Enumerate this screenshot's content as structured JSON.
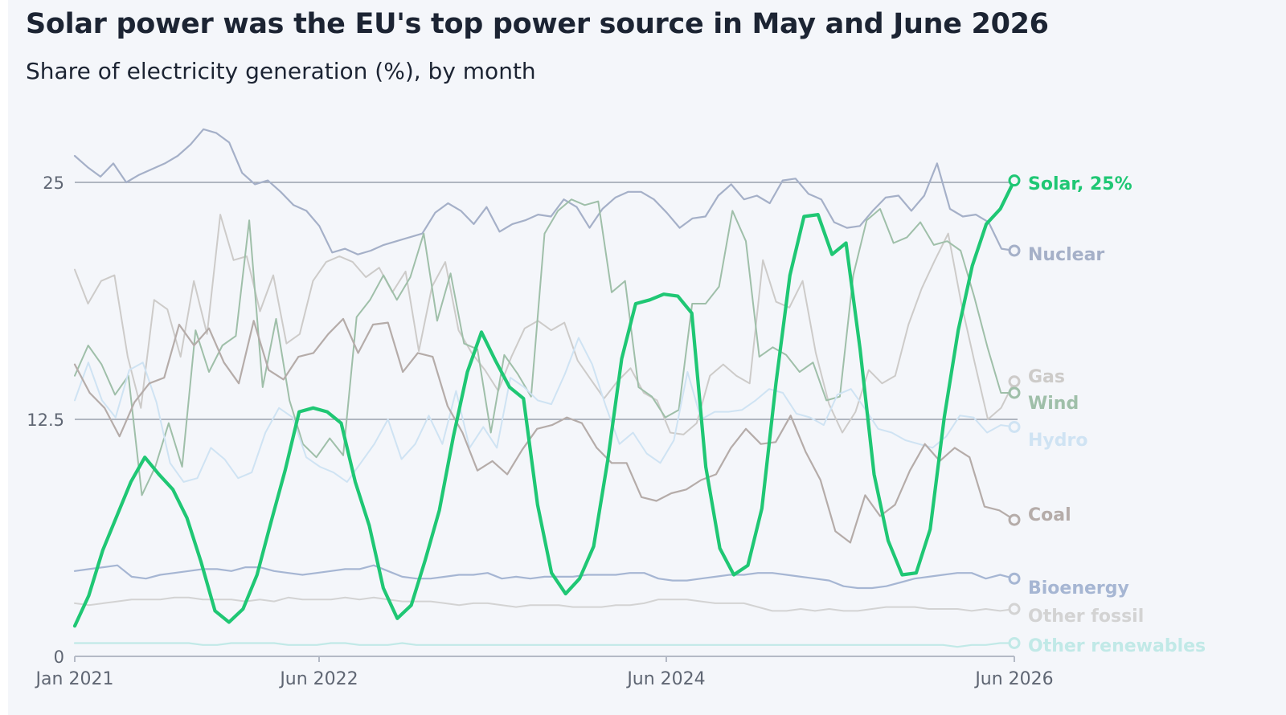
{
  "header": {
    "title": "Solar power was the EU's top power source in May and June 2026",
    "subtitle": "Share of electricity generation (%), by month"
  },
  "chart_data": {
    "type": "line",
    "title": "Solar power was the EU's top power source in May and June 2026",
    "subtitle": "Share of electricity generation (%), by month",
    "x_start": "2021-01",
    "x_end": "2026-06",
    "x_ticks": [
      "Jan 2021",
      "Jun 2022",
      "Jun 2024",
      "Jun 2026"
    ],
    "y_ticks": [
      "0",
      "12.5",
      "25"
    ],
    "ylim": [
      0,
      27
    ],
    "grid": true,
    "legend": "direct labels at right end of lines",
    "series": [
      {
        "name": "Nuclear",
        "end_label": "Nuclear",
        "color": "#a5b0c8",
        "width": 2.2,
        "values": [
          26.4,
          25.8,
          25.3,
          26.0,
          25.0,
          25.4,
          25.7,
          26.0,
          26.4,
          27.0,
          27.8,
          27.6,
          27.1,
          25.5,
          24.9,
          25.1,
          24.5,
          23.8,
          23.5,
          22.7,
          21.3,
          21.5,
          21.2,
          21.4,
          21.7,
          21.9,
          22.1,
          22.3,
          23.4,
          23.9,
          23.5,
          22.8,
          23.7,
          22.4,
          22.8,
          23.0,
          23.3,
          23.2,
          24.1,
          23.7,
          22.6,
          23.6,
          24.2,
          24.5,
          24.5,
          24.1,
          23.4,
          22.6,
          23.1,
          23.2,
          24.3,
          24.9,
          24.1,
          24.3,
          23.9,
          25.1,
          25.2,
          24.4,
          24.1,
          22.9,
          22.6,
          22.7,
          23.5,
          24.2,
          24.3,
          23.5,
          24.3,
          26.0,
          23.6,
          23.2,
          23.3,
          22.9,
          21.5,
          21.4
        ]
      },
      {
        "name": "Gas",
        "end_label": "Gas",
        "color": "#cdcbc9",
        "width": 2,
        "values": [
          20.4,
          18.6,
          19.8,
          20.1,
          15.8,
          13.1,
          18.8,
          18.3,
          15.8,
          19.8,
          17.0,
          23.3,
          20.9,
          21.1,
          18.2,
          20.1,
          16.5,
          17.0,
          19.8,
          20.8,
          21.1,
          20.8,
          20.0,
          20.5,
          19.2,
          20.3,
          16.1,
          19.5,
          20.8,
          17.2,
          16.0,
          15.1,
          14.0,
          15.8,
          17.3,
          17.7,
          17.2,
          17.6,
          15.6,
          14.6,
          13.6,
          14.5,
          15.2,
          13.9,
          13.5,
          11.8,
          11.7,
          12.3,
          14.8,
          15.4,
          14.8,
          14.4,
          20.9,
          18.7,
          18.4,
          19.8,
          16.0,
          13.3,
          11.8,
          12.9,
          15.1,
          14.4,
          14.8,
          17.5,
          19.4,
          20.9,
          22.3,
          18.6,
          15.5,
          12.5,
          13.1,
          14.5
        ]
      },
      {
        "name": "Wind",
        "end_label": "Wind",
        "color": "#9fbfa9",
        "width": 2,
        "values": [
          14.8,
          16.4,
          15.4,
          13.8,
          14.8,
          8.5,
          10.0,
          12.3,
          10.0,
          17.2,
          15.0,
          16.4,
          16.9,
          23.0,
          14.2,
          17.8,
          13.5,
          11.2,
          10.5,
          11.5,
          10.6,
          17.9,
          18.8,
          20.1,
          18.8,
          20.0,
          22.3,
          17.7,
          20.2,
          16.5,
          16.2,
          11.8,
          15.9,
          14.9,
          13.7,
          22.3,
          23.5,
          24.1,
          23.8,
          24.0,
          19.2,
          19.8,
          14.2,
          13.7,
          12.6,
          13.0,
          18.6,
          18.6,
          19.5,
          23.5,
          21.9,
          15.8,
          16.3,
          15.9,
          15.0,
          15.5,
          13.5,
          13.7,
          20.1,
          23.0,
          23.6,
          21.8,
          22.1,
          22.9,
          21.7,
          21.9,
          21.4,
          19.0,
          16.3,
          13.9,
          13.9
        ]
      },
      {
        "name": "Hydro",
        "end_label": "Hydro",
        "color": "#cfe3f3",
        "width": 2,
        "values": [
          13.5,
          15.5,
          13.5,
          12.6,
          15.1,
          15.5,
          13.4,
          10.2,
          9.2,
          9.4,
          11.0,
          10.4,
          9.4,
          9.7,
          11.8,
          13.1,
          12.6,
          10.5,
          10.0,
          9.7,
          9.2,
          10.2,
          11.2,
          12.5,
          10.4,
          11.2,
          12.7,
          11.2,
          14.0,
          11.0,
          12.1,
          11.0,
          14.7,
          14.2,
          13.5,
          13.3,
          14.9,
          16.8,
          15.4,
          13.2,
          11.2,
          11.8,
          10.7,
          10.2,
          11.4,
          15.0,
          12.5,
          12.9,
          12.9,
          13.0,
          13.5,
          14.1,
          13.9,
          12.8,
          12.6,
          12.2,
          13.8,
          14.1,
          13.1,
          12.0,
          11.8,
          11.4,
          11.2,
          11.0,
          11.6,
          12.7,
          12.6,
          11.8,
          12.2,
          12.1
        ]
      },
      {
        "name": "Coal",
        "end_label": "Coal",
        "color": "#b5aca9",
        "width": 2.2,
        "values": [
          15.4,
          13.9,
          13.1,
          11.6,
          13.4,
          14.4,
          14.7,
          17.5,
          16.4,
          17.3,
          15.5,
          14.4,
          17.7,
          15.1,
          14.6,
          15.8,
          16.0,
          17.0,
          17.8,
          16.0,
          17.5,
          17.6,
          15.0,
          16.0,
          15.8,
          13.2,
          11.8,
          9.8,
          10.3,
          9.6,
          10.9,
          12.0,
          12.2,
          12.6,
          12.3,
          11.0,
          10.2,
          10.2,
          8.4,
          8.2,
          8.6,
          8.8,
          9.3,
          9.6,
          11.0,
          12.0,
          11.2,
          11.3,
          12.7,
          10.8,
          9.3,
          6.6,
          6.0,
          8.5,
          7.4,
          8.0,
          9.8,
          11.2,
          10.3,
          11.0,
          10.5,
          7.9,
          7.7,
          7.2
        ]
      },
      {
        "name": "Bioenergy",
        "end_label": "Bioenergy",
        "color": "#a6b6d3",
        "width": 2.2,
        "values": [
          4.5,
          4.6,
          4.7,
          4.8,
          4.2,
          4.1,
          4.3,
          4.4,
          4.5,
          4.6,
          4.6,
          4.5,
          4.7,
          4.7,
          4.5,
          4.4,
          4.3,
          4.4,
          4.5,
          4.6,
          4.6,
          4.8,
          4.5,
          4.2,
          4.1,
          4.1,
          4.2,
          4.3,
          4.3,
          4.4,
          4.1,
          4.2,
          4.1,
          4.2,
          4.2,
          4.2,
          4.3,
          4.3,
          4.3,
          4.4,
          4.4,
          4.1,
          4.0,
          4.0,
          4.1,
          4.2,
          4.3,
          4.3,
          4.4,
          4.4,
          4.3,
          4.2,
          4.1,
          4.0,
          3.7,
          3.6,
          3.6,
          3.7,
          3.9,
          4.1,
          4.2,
          4.3,
          4.4,
          4.4,
          4.1,
          4.3,
          4.1
        ]
      },
      {
        "name": "Other fossil",
        "end_label": "Other fossil",
        "color": "#d3d3d3",
        "width": 2,
        "values": [
          2.8,
          2.7,
          2.8,
          2.9,
          3.0,
          3.0,
          3.0,
          3.1,
          3.1,
          3.0,
          3.0,
          3.0,
          2.9,
          3.0,
          2.9,
          3.1,
          3.0,
          3.0,
          3.0,
          3.1,
          3.0,
          3.1,
          3.0,
          2.9,
          2.9,
          2.9,
          2.8,
          2.7,
          2.8,
          2.8,
          2.7,
          2.6,
          2.7,
          2.7,
          2.7,
          2.6,
          2.6,
          2.6,
          2.7,
          2.7,
          2.8,
          3.0,
          3.0,
          3.0,
          2.9,
          2.8,
          2.8,
          2.8,
          2.6,
          2.4,
          2.4,
          2.5,
          2.4,
          2.5,
          2.4,
          2.4,
          2.5,
          2.6,
          2.6,
          2.6,
          2.5,
          2.5,
          2.5,
          2.4,
          2.5,
          2.4,
          2.5
        ]
      },
      {
        "name": "Other renewables",
        "end_label": "Other renewables",
        "color": "#c1e9e7",
        "width": 2.2,
        "values": [
          0.7,
          0.7,
          0.7,
          0.7,
          0.7,
          0.7,
          0.7,
          0.7,
          0.7,
          0.6,
          0.6,
          0.7,
          0.7,
          0.7,
          0.7,
          0.6,
          0.6,
          0.6,
          0.7,
          0.7,
          0.6,
          0.6,
          0.6,
          0.7,
          0.6,
          0.6,
          0.6,
          0.6,
          0.6,
          0.6,
          0.6,
          0.6,
          0.6,
          0.6,
          0.6,
          0.6,
          0.6,
          0.6,
          0.6,
          0.6,
          0.6,
          0.6,
          0.6,
          0.6,
          0.6,
          0.6,
          0.6,
          0.6,
          0.6,
          0.6,
          0.6,
          0.6,
          0.6,
          0.6,
          0.6,
          0.6,
          0.6,
          0.6,
          0.6,
          0.6,
          0.6,
          0.6,
          0.5,
          0.6,
          0.6,
          0.7,
          0.7
        ]
      },
      {
        "name": "Solar",
        "end_label": "Solar, 25%",
        "color": "#1fc774",
        "width": 4.2,
        "values": [
          1.6,
          3.2,
          5.6,
          7.4,
          9.2,
          10.5,
          9.6,
          8.8,
          7.3,
          5.0,
          2.4,
          1.8,
          2.5,
          4.3,
          7.1,
          9.8,
          12.9,
          13.1,
          12.9,
          12.3,
          9.2,
          6.9,
          3.6,
          2.0,
          2.7,
          5.1,
          7.7,
          11.6,
          15.0,
          17.1,
          15.6,
          14.2,
          13.6,
          8.0,
          4.4,
          3.3,
          4.1,
          5.8,
          10.3,
          15.7,
          18.6,
          18.8,
          19.1,
          19.0,
          18.1,
          10.0,
          5.7,
          4.3,
          4.8,
          7.8,
          14.4,
          20.1,
          23.2,
          23.3,
          21.2,
          21.8,
          16.2,
          9.6,
          6.1,
          4.3,
          4.4,
          6.7,
          12.6,
          17.2,
          20.6,
          22.8,
          23.6,
          25.1
        ]
      }
    ]
  }
}
